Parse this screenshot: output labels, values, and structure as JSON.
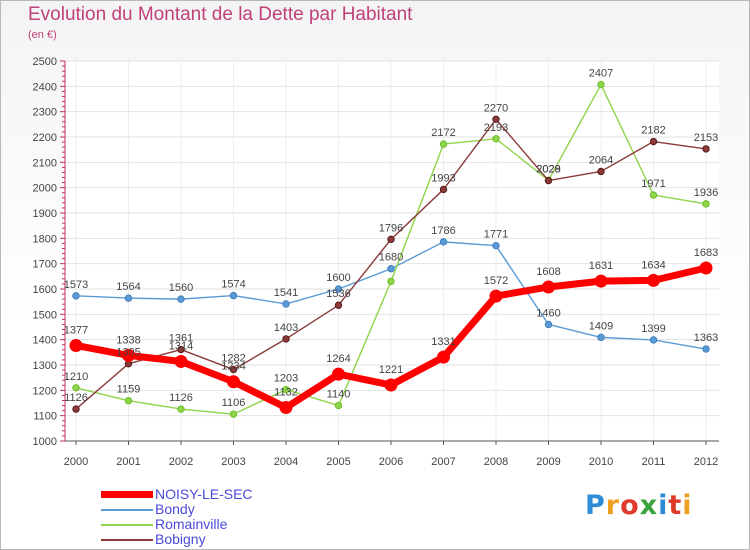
{
  "title": "Evolution du Montant de la Dette par Habitant",
  "subtitle": "(en €)",
  "logo": {
    "text": "Proxiti",
    "colors": [
      "#2e8bd6",
      "#f0a020",
      "#e03a2a",
      "#3aa23a",
      "#2e8bd6",
      "#e03a2a",
      "#f0a020"
    ]
  },
  "chart_data": {
    "type": "line",
    "x": [
      "2000",
      "2001",
      "2002",
      "2003",
      "2004",
      "2005",
      "2006",
      "2007",
      "2008",
      "2009",
      "2010",
      "2011",
      "2012"
    ],
    "ylim": [
      1000,
      2500
    ],
    "yticks": [
      "1000",
      "1100",
      "1200",
      "1300",
      "1400",
      "1500",
      "1600",
      "1700",
      "1800",
      "1900",
      "2000",
      "2100",
      "2200",
      "2300",
      "2400",
      "2500"
    ],
    "grid": "horizontal",
    "legend": "bottom-left",
    "series": [
      {
        "name": "Bondy",
        "color": "#5b9bd5",
        "marker": "#3f7fc0",
        "values": [
          1573,
          1564,
          1560,
          1574,
          1541,
          1600,
          1680,
          1786,
          1771,
          1460,
          1409,
          1399,
          1363
        ],
        "labels": [
          "1573",
          "1564",
          "1560",
          "1574",
          "1541",
          "1600",
          "1680",
          "1786",
          "1771",
          "1460",
          "1409",
          "1399",
          "1363"
        ]
      },
      {
        "name": "Romainville",
        "color": "#8fd44a",
        "marker": "#6bbf2a",
        "values": [
          1210,
          1159,
          1126,
          1106,
          1203,
          1140,
          1630,
          2172,
          2193,
          2029,
          2407,
          1971,
          1936
        ],
        "labels": [
          "1210",
          "1159",
          "1126",
          "1106",
          "1203",
          "1140",
          "",
          "2172",
          "2193",
          "2029",
          "2407",
          "1971",
          "1936"
        ]
      },
      {
        "name": "Bobigny",
        "color": "#8b3a3a",
        "marker": "#5a1a1a",
        "values": [
          1126,
          1305,
          1361,
          1282,
          1403,
          1536,
          1796,
          1993,
          2270,
          2028,
          2064,
          2182,
          2153
        ],
        "labels": [
          "1126",
          "1305",
          "1361",
          "1282",
          "1403",
          "1536",
          "1796",
          "1993",
          "2270",
          "2028",
          "2064",
          "2182",
          "2153"
        ]
      },
      {
        "name": "NOISY-LE-SEC",
        "color": "#ff0000",
        "marker": "#ff0000",
        "highlight": true,
        "values": [
          1377,
          1338,
          1314,
          1234,
          1132,
          1264,
          1221,
          1331,
          1572,
          1608,
          1631,
          1634,
          1683
        ],
        "labels": [
          "1377",
          "1338",
          "1314",
          "1234",
          "1132",
          "1264",
          "1221",
          "1331",
          "1572",
          "1608",
          "1631",
          "1634",
          "1683"
        ]
      }
    ],
    "legend_order": [
      "NOISY-LE-SEC",
      "Bondy",
      "Romainville",
      "Bobigny"
    ]
  }
}
